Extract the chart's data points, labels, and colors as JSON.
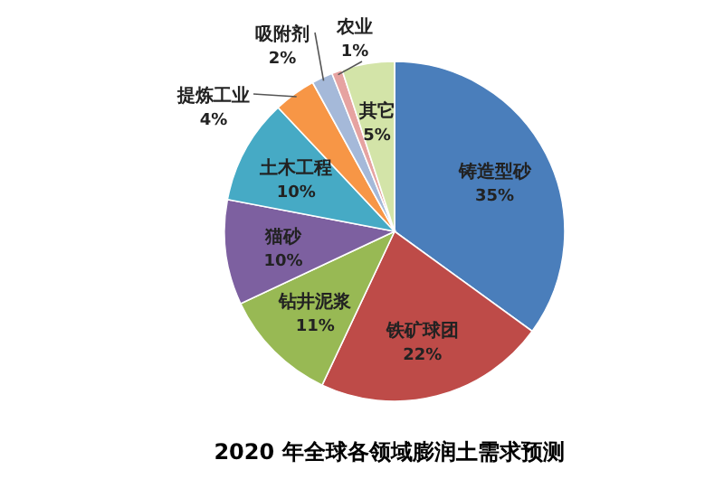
{
  "chart_data": {
    "type": "pie",
    "title": "2020 年全球各领域膨润土需求预测",
    "categories": [
      "铸造型砂",
      "铁矿球团",
      "钻井泥浆",
      "猫砂",
      "土木工程",
      "提炼工业",
      "吸附剂",
      "农业",
      "其它"
    ],
    "values": [
      35,
      22,
      11,
      10,
      10,
      4,
      2,
      1,
      5
    ],
    "value_labels": [
      "35%",
      "22%",
      "11%",
      "10%",
      "10%",
      "4%",
      "2%",
      "1%",
      "5%"
    ],
    "colors": [
      "#4a7ebb",
      "#be4b48",
      "#98b954",
      "#7d60a0",
      "#46aac5",
      "#f79646",
      "#a5b9d9",
      "#e6a3a1",
      "#d3e4a8"
    ]
  }
}
